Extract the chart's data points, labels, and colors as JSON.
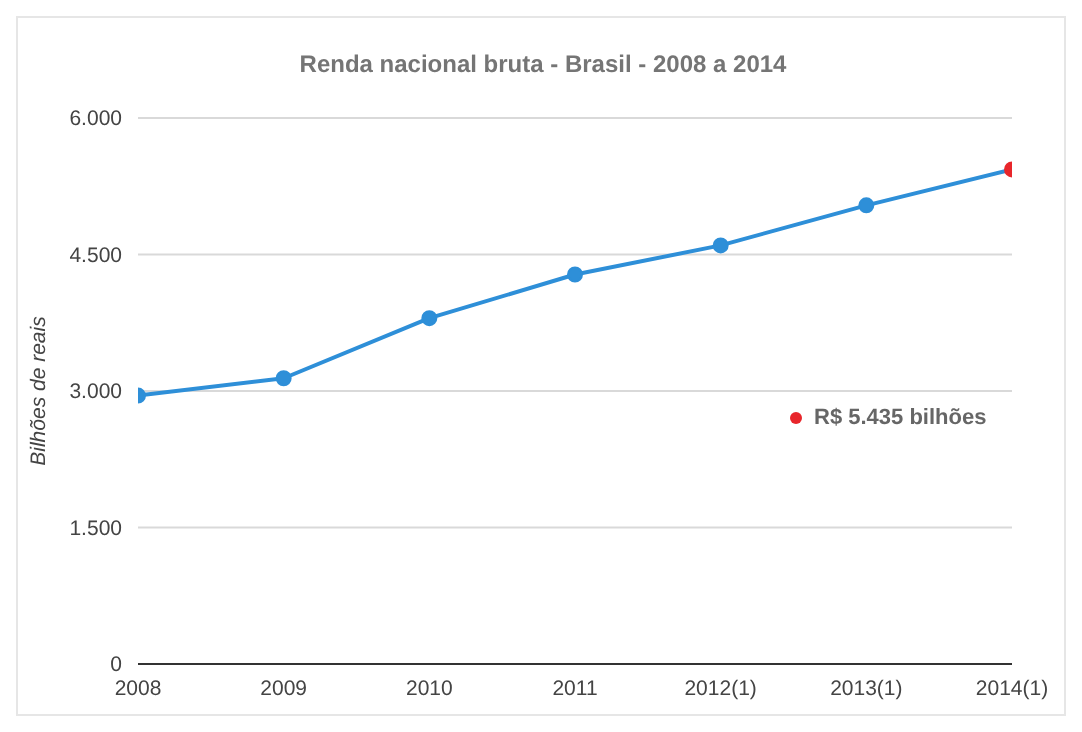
{
  "chart_data": {
    "type": "line",
    "title": "Renda nacional bruta - Brasil - 2008 a 2014",
    "ylabel": "Bilhões de reais",
    "categories": [
      "2008",
      "2009",
      "2010",
      "2011",
      "2012(1)",
      "2013(1)",
      "2014(1)"
    ],
    "series": [
      {
        "color": "#2e8fd8",
        "colors": [
          "#2e8fd8",
          "#2e8fd8",
          "#2e8fd8",
          "#2e8fd8",
          "#2e8fd8",
          "#2e8fd8",
          "#e8262b"
        ],
        "values": [
          2950,
          3140,
          3800,
          4280,
          4600,
          5040,
          5435
        ]
      }
    ],
    "ylim": [
      0,
      6000
    ],
    "yticks": [
      {
        "value": 0,
        "label": "0"
      },
      {
        "value": 1500,
        "label": "1.500"
      },
      {
        "value": 3000,
        "label": "3.000"
      },
      {
        "value": 4500,
        "label": "4.500"
      },
      {
        "value": 6000,
        "label": "6.000"
      }
    ],
    "grid": "y",
    "marker": "circle",
    "line_style": "solid",
    "annotations": [
      "R$ 5.435 bilhões"
    ]
  }
}
